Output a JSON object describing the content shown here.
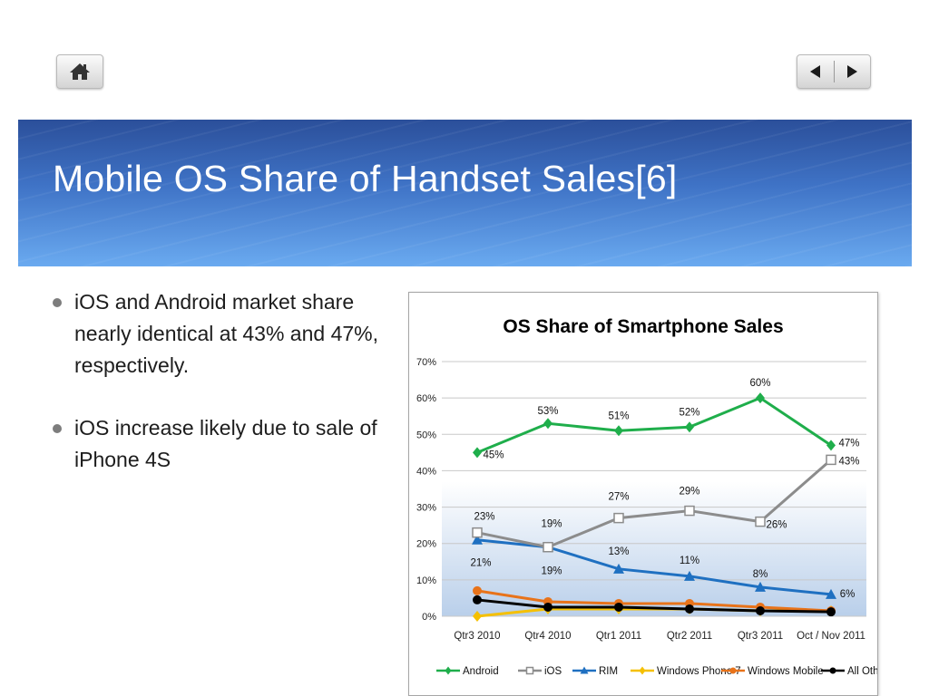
{
  "slide": {
    "title": "Mobile OS Share of Handset Sales[6]",
    "bullets": [
      "iOS and Android market share nearly identical at 43% and 47%, respectively.",
      "iOS increase likely due to sale of iPhone 4S"
    ]
  },
  "nav": {
    "home_icon": "home-icon",
    "prev_icon": "triangle-left-icon",
    "next_icon": "triangle-right-icon"
  },
  "chart_data": {
    "type": "line",
    "title": "OS Share of Smartphone Sales",
    "xlabel": "",
    "ylabel": "",
    "categories": [
      "Qtr3 2010",
      "Qtr4 2010",
      "Qtr1 2011",
      "Qtr2 2011",
      "Qtr3 2011",
      "Oct / Nov 2011"
    ],
    "ylim": [
      0,
      70
    ],
    "yticks": [
      0,
      10,
      20,
      30,
      40,
      50,
      60,
      70
    ],
    "ytick_labels": [
      "0%",
      "10%",
      "20%",
      "30%",
      "40%",
      "50%",
      "60%",
      "70%"
    ],
    "grid": true,
    "legend_position": "bottom",
    "series": [
      {
        "name": "Android",
        "color": "#1fae4b",
        "marker": "diamond",
        "values": [
          45,
          53,
          51,
          52,
          60,
          47
        ],
        "labels": [
          "45%",
          "53%",
          "51%",
          "52%",
          "60%",
          "47%"
        ]
      },
      {
        "name": "iOS",
        "color": "#8c8c8c",
        "marker": "square",
        "values": [
          23,
          19,
          27,
          29,
          26,
          43
        ],
        "labels": [
          "23%",
          "19%",
          "27%",
          "29%",
          "26%",
          "43%"
        ]
      },
      {
        "name": "RIM",
        "color": "#1f70c1",
        "marker": "triangle",
        "values": [
          21,
          19,
          13,
          11,
          8,
          6
        ],
        "labels": [
          "21%",
          "19%",
          "13%",
          "11%",
          "8%",
          "6%"
        ]
      },
      {
        "name": "Windows Phone 7",
        "color": "#f5c000",
        "marker": "diamond",
        "values": [
          0,
          2,
          2,
          2,
          1.5,
          1.5
        ],
        "labels": []
      },
      {
        "name": "Windows Mobile",
        "color": "#e8731a",
        "marker": "circle",
        "values": [
          7,
          4,
          3.5,
          3.5,
          2.5,
          1.5
        ],
        "labels": []
      },
      {
        "name": "All Others",
        "color": "#000000",
        "marker": "circle",
        "values": [
          4.5,
          2.5,
          2.5,
          2,
          1.5,
          1.2
        ],
        "labels": []
      }
    ]
  }
}
